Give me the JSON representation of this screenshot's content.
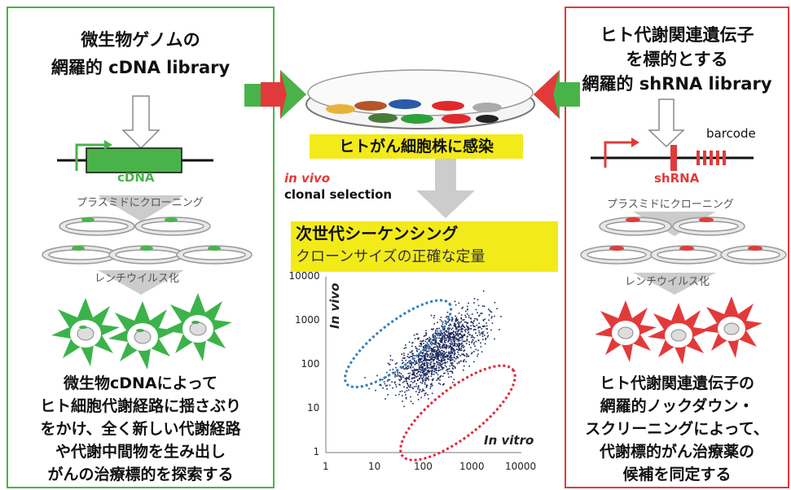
{
  "left": {
    "title_line1": "微生物ゲノムの",
    "title_line2": "網羅的 cDNA library",
    "gene_label": "cDNA",
    "step1": "プラスミドにクローニング",
    "step2": "レンチウイルス化",
    "conclusion_lines": [
      "微生物cDNAによって",
      "ヒト細胞代謝経路に揺さぶり",
      "をかけ、全く新しい代謝経路",
      "や代謝中間物を生み出し",
      "がんの治療標的を探索する"
    ]
  },
  "right": {
    "title_line1": "ヒト代謝関連遺伝子",
    "title_line2": "を標的とする",
    "title_line3": "網羅的 shRNA library",
    "barcode_label": "barcode",
    "gene_label": "shRNA",
    "step1": "プラスミドにクローニング",
    "step2": "レンチウイルス化",
    "conclusion_lines": [
      "ヒト代謝関連遺伝子の",
      "網羅的ノックダウン・",
      "スクリーニングによって、",
      "代謝標的がん治療薬の",
      "候補を同定する"
    ]
  },
  "center": {
    "infection_banner": "ヒトがん細胞株に感染",
    "selection_italic": "in vivo",
    "selection_text": "clonal selection",
    "ngs_line1": "次世代シーケンシング",
    "ngs_line2": "クローンサイズの正確な定量"
  },
  "chart_data": {
    "type": "scatter",
    "xscale": "log",
    "yscale": "log",
    "xlim": [
      1,
      10000
    ],
    "ylim": [
      1,
      10000
    ],
    "xticks": [
      "1",
      "10",
      "100",
      "1000",
      "10000"
    ],
    "yticks": [
      "1",
      "10",
      "100",
      "1000",
      "10000"
    ],
    "xlabel": "In vitro",
    "ylabel": "In vivo",
    "point_cloud": {
      "center_x": 200,
      "center_y": 200,
      "spread_decades": 0.6
    },
    "highlight_regions": [
      {
        "color": "#2e7fc4",
        "side": "upper-left"
      },
      {
        "color": "#e0283a",
        "side": "lower-right"
      }
    ],
    "colors": {
      "points": "#1d2a5c"
    }
  },
  "colors": {
    "green": "#49b34a",
    "red": "#e23a3a",
    "yellow": "#f3ea1a"
  }
}
